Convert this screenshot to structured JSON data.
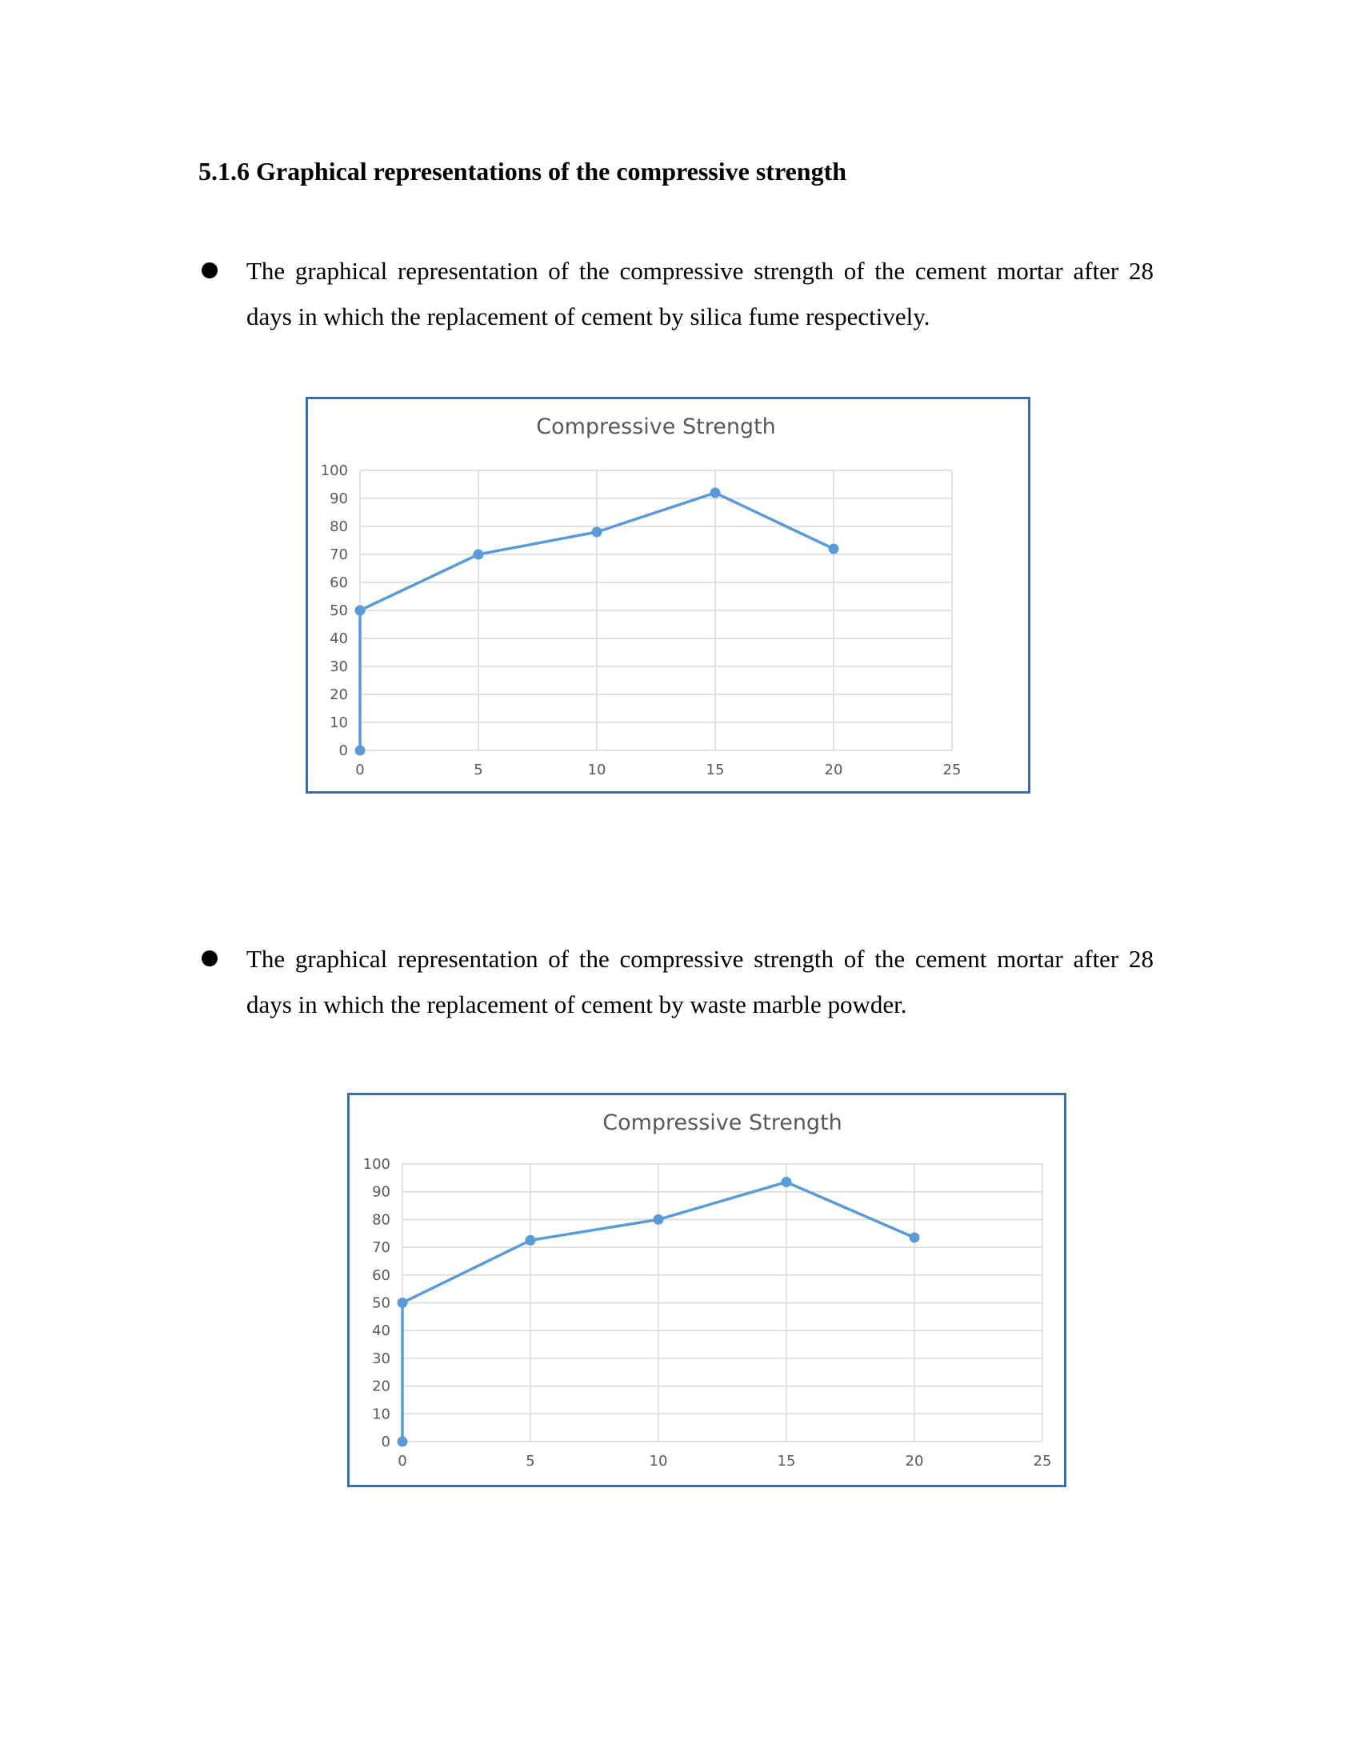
{
  "heading": "5.1.6  Graphical representations of the compressive strength",
  "bullets": [
    "The graphical representation of the compressive strength of the cement mortar after 28 days in which the replacement of cement by silica fume respectively.",
    "The graphical representation of the compressive strength of the cement mortar after 28 days in which the replacement of cement by waste marble powder."
  ],
  "colors": {
    "series": "#5b9bd5",
    "border": "#3b6ea5",
    "grid": "#d9d9d9",
    "text": "#595959"
  },
  "chart_data": [
    {
      "type": "scatter",
      "mode": "lines+markers",
      "title": "Compressive Strength",
      "xlabel": "",
      "ylabel": "",
      "xlim": [
        0,
        25
      ],
      "ylim": [
        0,
        100
      ],
      "xticks": [
        0,
        5,
        10,
        15,
        20,
        25
      ],
      "yticks": [
        0,
        10,
        20,
        30,
        40,
        50,
        60,
        70,
        80,
        90,
        100
      ],
      "grid": true,
      "series": [
        {
          "x": [
            0,
            0,
            5,
            10,
            15,
            20
          ],
          "y": [
            0,
            50,
            70,
            78,
            92,
            72
          ]
        }
      ]
    },
    {
      "type": "scatter",
      "mode": "lines+markers",
      "title": "Compressive Strength",
      "xlabel": "",
      "ylabel": "",
      "xlim": [
        0,
        25
      ],
      "ylim": [
        0,
        100
      ],
      "xticks": [
        0,
        5,
        10,
        15,
        20,
        25
      ],
      "yticks": [
        0,
        10,
        20,
        30,
        40,
        50,
        60,
        70,
        80,
        90,
        100
      ],
      "grid": true,
      "series": [
        {
          "x": [
            0,
            0,
            5,
            10,
            15,
            20
          ],
          "y": [
            0,
            50,
            72.5,
            80,
            93.5,
            73.5
          ]
        }
      ]
    }
  ]
}
